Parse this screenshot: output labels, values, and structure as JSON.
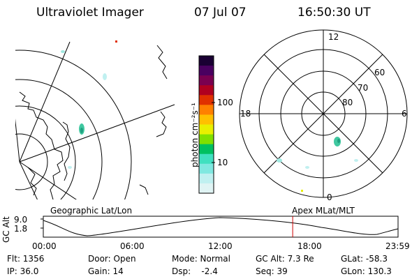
{
  "header": {
    "instrument": "Ultraviolet Imager",
    "date": "07 Jul 07",
    "time": "16:50:30 UT"
  },
  "colorbar": {
    "unit_label": "photon cm⁻²s⁻¹",
    "ticks": [
      "100",
      "10"
    ],
    "colors": [
      "#1a0033",
      "#4a0060",
      "#7a0050",
      "#b00020",
      "#e03000",
      "#ff8000",
      "#ffc000",
      "#e8f000",
      "#80e000",
      "#00c060",
      "#40e0c0",
      "#80e8e0",
      "#c0f0f0",
      "#e0f4f4"
    ]
  },
  "polar": {
    "mlt_labels": [
      "12",
      "18",
      "6",
      "0"
    ],
    "lat_labels": [
      "60",
      "70",
      "80"
    ]
  },
  "timeline": {
    "ylabel": "GC Alt",
    "yticks": [
      "9.0",
      "1.8"
    ],
    "left_title": "Geographic Lat/Lon",
    "right_title": "Apex MLat/MLT",
    "xticks": [
      "00:00",
      "06:00",
      "12:00",
      "18:00",
      "23:59"
    ],
    "current_fraction": 0.703,
    "marker_color": "#cc0000"
  },
  "status": {
    "flt": "Flt: 1356",
    "ip": "IP: 36.0",
    "door": "Door: Open",
    "gain": "Gain: 14",
    "mode": "Mode: Normal",
    "dsp": "Dsp:    -2.4",
    "gcalt": "GC Alt: 7.3 Re",
    "seq": "Seq: 39",
    "glat": "GLat: -58.3",
    "glon": "GLon: 130.3"
  }
}
